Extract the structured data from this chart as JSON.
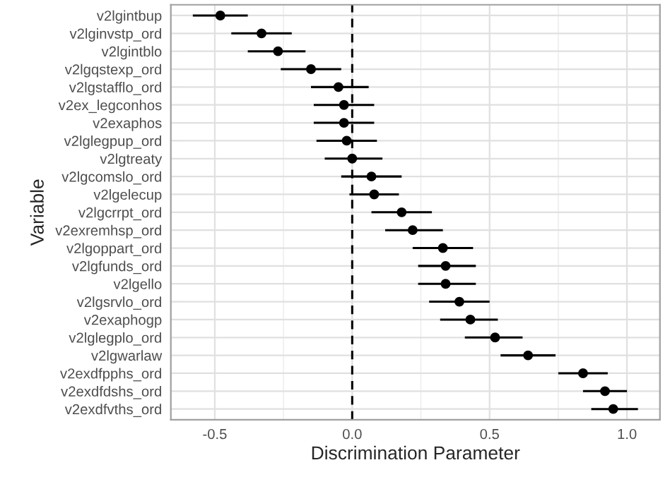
{
  "chart_data": {
    "type": "scatter",
    "orientation": "horizontal",
    "xlabel": "Discrimination Parameter",
    "ylabel": "Variable",
    "categories": [
      "v2lgintbup",
      "v2lginvstp_ord",
      "v2lgintblo",
      "v2lgqstexp_ord",
      "v2lgstafflo_ord",
      "v2ex_legconhos",
      "v2exaphos",
      "v2lglegpup_ord",
      "v2lgtreaty",
      "v2lgcomslo_ord",
      "v2lgelecup",
      "v2lgcrrpt_ord",
      "v2exremhsp_ord",
      "v2lgoppart_ord",
      "v2lgfunds_ord",
      "v2lgello",
      "v2lgsrvlo_ord",
      "v2exaphogp",
      "v2lglegplo_ord",
      "v2lgwarlaw",
      "v2exdfpphs_ord",
      "v2exdfdshs_ord",
      "v2exdfvths_ord"
    ],
    "values": [
      -0.48,
      -0.33,
      -0.27,
      -0.15,
      -0.05,
      -0.03,
      -0.03,
      -0.02,
      0.0,
      0.07,
      0.08,
      0.18,
      0.22,
      0.33,
      0.34,
      0.34,
      0.39,
      0.43,
      0.52,
      0.64,
      0.84,
      0.92,
      0.95
    ],
    "errors": [
      [
        -0.58,
        -0.38
      ],
      [
        -0.44,
        -0.22
      ],
      [
        -0.38,
        -0.17
      ],
      [
        -0.26,
        -0.04
      ],
      [
        -0.15,
        0.06
      ],
      [
        -0.14,
        0.08
      ],
      [
        -0.14,
        0.08
      ],
      [
        -0.13,
        0.09
      ],
      [
        -0.1,
        0.11
      ],
      [
        -0.04,
        0.18
      ],
      [
        -0.01,
        0.17
      ],
      [
        0.07,
        0.29
      ],
      [
        0.12,
        0.33
      ],
      [
        0.22,
        0.44
      ],
      [
        0.24,
        0.45
      ],
      [
        0.24,
        0.45
      ],
      [
        0.28,
        0.5
      ],
      [
        0.32,
        0.53
      ],
      [
        0.41,
        0.62
      ],
      [
        0.54,
        0.74
      ],
      [
        0.75,
        0.93
      ],
      [
        0.84,
        1.0
      ],
      [
        0.87,
        1.04
      ]
    ],
    "color": "#000000",
    "marker": "circle",
    "xlim": [
      -0.66,
      1.12
    ],
    "xticks": [
      -0.5,
      {
        "value": 0,
        "label": "0.0"
      },
      0.5,
      {
        "value": 1,
        "label": "1.0"
      }
    ],
    "ref_lines": [
      {
        "axis": "x",
        "value": 0,
        "color": "#000000",
        "line_style": "dashed"
      }
    ],
    "grid": true
  }
}
